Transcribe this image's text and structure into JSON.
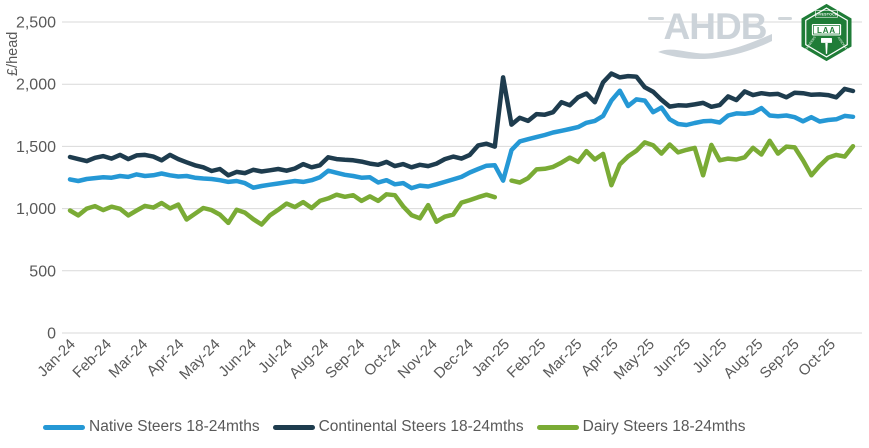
{
  "branding": {
    "ahdb_logo_text": "AHDB",
    "laa_logo": {
      "top_label": "LIVESTOCK",
      "center_label": "LAA",
      "left_label": "AUCTIONEERS",
      "right_label": "ASSOCIATION"
    }
  },
  "colors": {
    "grid": "#d9d9d9",
    "axis_text": "#595959",
    "ahdb_gray": "#ccd3d9",
    "laa_green": "#1f7c37",
    "native_blue": "#2598d5",
    "continental_navy": "#1e3c4e",
    "dairy_green": "#7aab35"
  },
  "chart_data": {
    "type": "line",
    "title": "",
    "xlabel": "",
    "ylabel": "£/head",
    "ylim": [
      0,
      2500
    ],
    "ytick_step": 500,
    "ytick_labels": [
      "0",
      "500",
      "1,000",
      "1,500",
      "2,000",
      "2,500"
    ],
    "grid": "horizontal",
    "legend_position": "bottom",
    "x_frequency": "weekly",
    "weeks_per_month": 4.345,
    "x_tick_labels": [
      "Jan-24",
      "Feb-24",
      "Mar-24",
      "Apr-24",
      "May-24",
      "Jun-24",
      "Jul-24",
      "Aug-24",
      "Sep-24",
      "Oct-24",
      "Nov-24",
      "Dec-24",
      "Jan-25",
      "Feb-25",
      "Mar-25",
      "Apr-25",
      "May-25",
      "Jun-25",
      "Jul-25",
      "Aug-25",
      "Sep-25",
      "Oct-25"
    ],
    "series": [
      {
        "name": "Native Steers 18-24mths",
        "color": "#2598d5",
        "values": [
          1235,
          1222,
          1238,
          1245,
          1252,
          1248,
          1262,
          1255,
          1275,
          1262,
          1268,
          1282,
          1268,
          1258,
          1262,
          1248,
          1242,
          1238,
          1228,
          1215,
          1222,
          1205,
          1168,
          1182,
          1192,
          1202,
          1212,
          1222,
          1215,
          1228,
          1252,
          1305,
          1288,
          1272,
          1262,
          1248,
          1252,
          1210,
          1228,
          1195,
          1205,
          1165,
          1185,
          1178,
          1195,
          1215,
          1235,
          1255,
          1290,
          1318,
          1345,
          1348,
          1225,
          1470,
          1540,
          1558,
          1575,
          1592,
          1612,
          1625,
          1640,
          1655,
          1690,
          1705,
          1745,
          1868,
          1948,
          1825,
          1878,
          1868,
          1775,
          1812,
          1718,
          1680,
          1672,
          1688,
          1702,
          1705,
          1692,
          1748,
          1765,
          1762,
          1772,
          1808,
          1748,
          1742,
          1748,
          1735,
          1702,
          1735,
          1700,
          1712,
          1718,
          1745,
          1738
        ]
      },
      {
        "name": "Continental Steers 18-24mths",
        "color": "#1e3c4e",
        "values": [
          1415,
          1398,
          1382,
          1408,
          1422,
          1402,
          1432,
          1398,
          1428,
          1432,
          1418,
          1388,
          1432,
          1398,
          1372,
          1348,
          1332,
          1302,
          1318,
          1268,
          1295,
          1285,
          1312,
          1298,
          1308,
          1318,
          1305,
          1322,
          1358,
          1332,
          1348,
          1412,
          1398,
          1392,
          1388,
          1378,
          1362,
          1352,
          1375,
          1342,
          1358,
          1332,
          1352,
          1342,
          1362,
          1398,
          1418,
          1402,
          1432,
          1508,
          1522,
          1498,
          2055,
          1675,
          1730,
          1705,
          1760,
          1755,
          1775,
          1855,
          1830,
          1895,
          1925,
          1855,
          2015,
          2085,
          2055,
          2065,
          2060,
          1975,
          1940,
          1875,
          1820,
          1830,
          1828,
          1838,
          1850,
          1818,
          1832,
          1902,
          1872,
          1942,
          1912,
          1928,
          1918,
          1922,
          1895,
          1932,
          1928,
          1915,
          1918,
          1912,
          1895,
          1962,
          1945
        ]
      },
      {
        "name": "Dairy Steers 18-24mths",
        "color": "#7aab35",
        "values": [
          985,
          945,
          1000,
          1020,
          988,
          1015,
          998,
          945,
          985,
          1022,
          1008,
          1045,
          1002,
          1032,
          912,
          958,
          1005,
          988,
          952,
          885,
          990,
          968,
          915,
          872,
          945,
          990,
          1040,
          1012,
          1052,
          1005,
          1062,
          1082,
          1112,
          1095,
          1108,
          1062,
          1098,
          1062,
          1115,
          1108,
          1018,
          948,
          922,
          1028,
          895,
          935,
          952,
          1048,
          1068,
          1092,
          1112,
          1092,
          null,
          1225,
          1210,
          1245,
          1315,
          1320,
          1335,
          1370,
          1410,
          1375,
          1462,
          1395,
          1440,
          1188,
          1355,
          1420,
          1465,
          1532,
          1510,
          1442,
          1515,
          1452,
          1472,
          1488,
          1268,
          1512,
          1388,
          1402,
          1395,
          1412,
          1488,
          1435,
          1545,
          1442,
          1498,
          1492,
          1388,
          1268,
          1345,
          1408,
          1432,
          1418,
          1502
        ]
      }
    ]
  }
}
